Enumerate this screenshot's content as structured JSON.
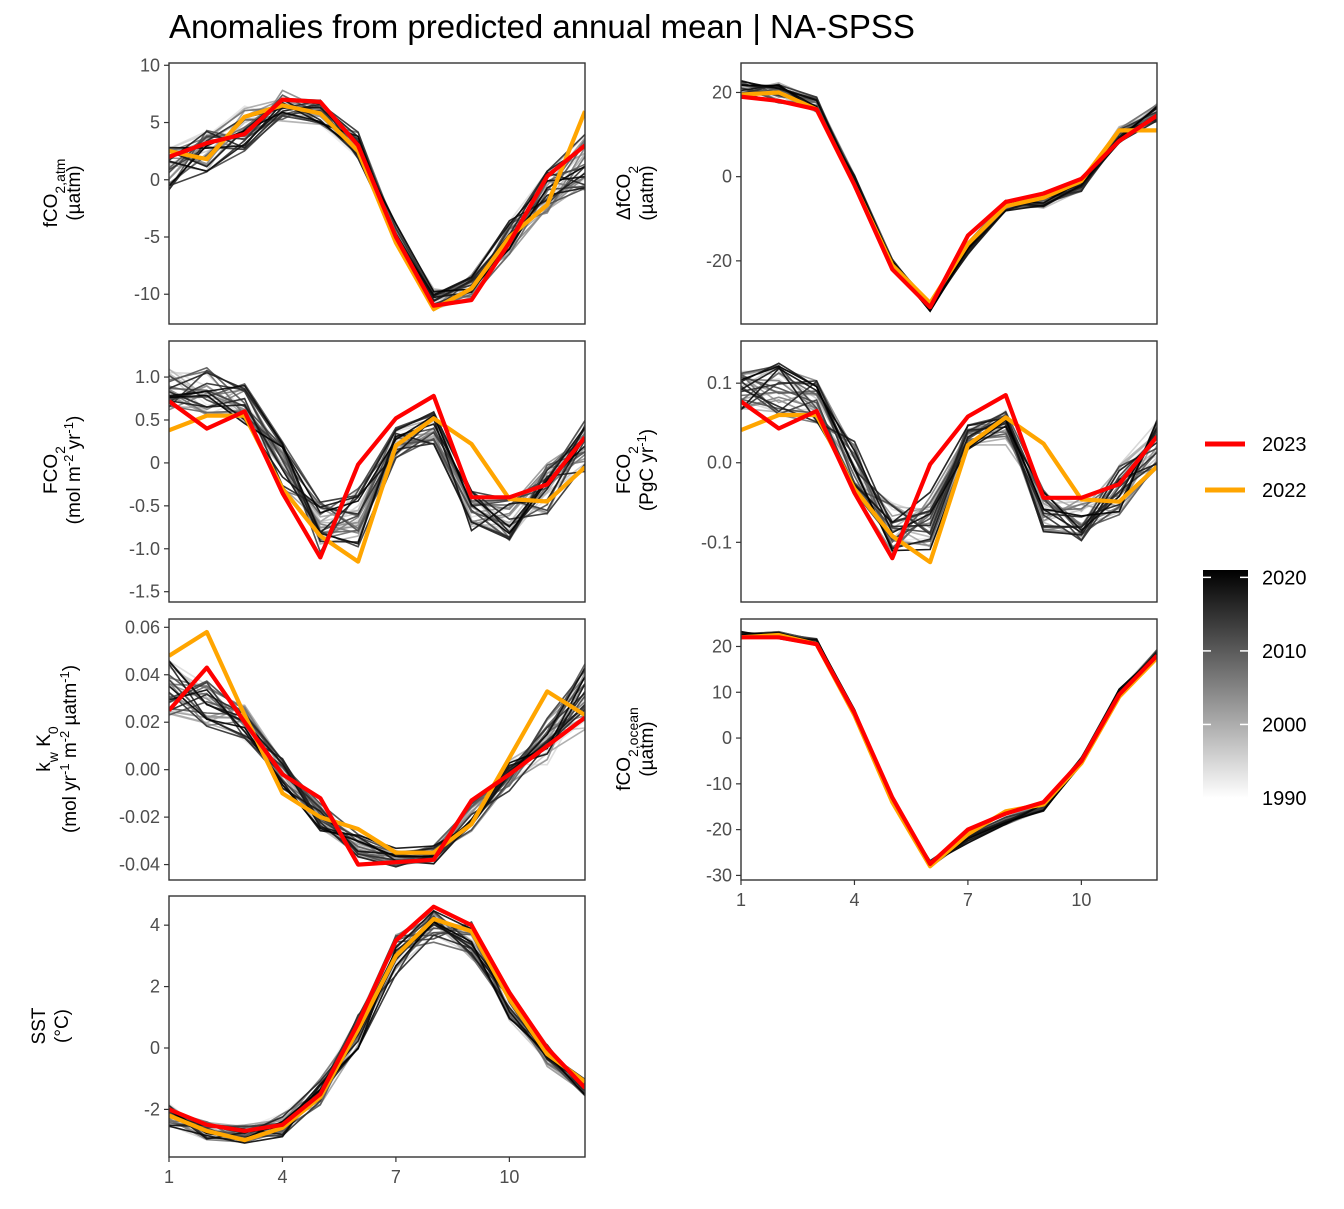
{
  "title": "Anomalies from predicted annual mean | NA-SPSS",
  "x_ticks": [
    1,
    4,
    7,
    10
  ],
  "legend": {
    "lines": [
      {
        "label": "2023",
        "color": "#FF0000"
      },
      {
        "label": "2022",
        "color": "#FFA500"
      }
    ],
    "colorbar_ticks": [
      "2020",
      "2010",
      "2000",
      "1990"
    ],
    "colorbar_range": [
      1990,
      2021
    ]
  },
  "chart_data": [
    {
      "type": "line",
      "ylabel": "fCO2,atm (µatm)",
      "ylim": [
        -12.6,
        10.2
      ],
      "y_ticks": [
        10,
        5,
        0,
        -5,
        -10
      ],
      "x": [
        1,
        2,
        3,
        4,
        5,
        6,
        7,
        8,
        9,
        10,
        11,
        12
      ],
      "series": [
        {
          "name": "2023",
          "values": [
            2.0,
            3.2,
            4.0,
            7.0,
            6.8,
            3.0,
            -5.0,
            -11.0,
            -10.5,
            -5.5,
            0.3,
            3.0
          ]
        },
        {
          "name": "2022",
          "values": [
            2.5,
            1.8,
            5.5,
            6.5,
            5.8,
            2.5,
            -5.5,
            -11.3,
            -9.5,
            -5.0,
            -2.2,
            6.0
          ]
        }
      ],
      "band_mean": [
        1.0,
        2.5,
        4.5,
        6.5,
        6.0,
        3.0,
        -4.8,
        -10.5,
        -9.5,
        -5.0,
        -1.0,
        1.5
      ],
      "band_spread": [
        2.0,
        2.0,
        2.0,
        1.5,
        1.2,
        1.2,
        1.0,
        1.0,
        1.2,
        1.5,
        2.0,
        2.5
      ]
    },
    {
      "type": "line",
      "ylabel": "ΔfCO2 (µatm)",
      "ylim": [
        -35,
        27
      ],
      "y_ticks": [
        20,
        0,
        -20
      ],
      "x": [
        1,
        2,
        3,
        4,
        5,
        6,
        7,
        8,
        9,
        10,
        11,
        12
      ],
      "series": [
        {
          "name": "2023",
          "values": [
            19.0,
            18.0,
            16.0,
            -2.0,
            -22.0,
            -31.0,
            -14.0,
            -6.0,
            -4.0,
            -0.5,
            8.5,
            14.5
          ]
        },
        {
          "name": "2022",
          "values": [
            19.5,
            20.0,
            16.0,
            -2.0,
            -21.0,
            -30.0,
            -16.0,
            -7.0,
            -5.0,
            -1.0,
            11.0,
            11.0
          ]
        }
      ],
      "band_mean": [
        21.0,
        20.0,
        17.0,
        -1.0,
        -21.0,
        -31.0,
        -17.0,
        -7.0,
        -6.0,
        -2.0,
        10.0,
        15.0
      ],
      "band_spread": [
        2.0,
        2.5,
        2.0,
        1.5,
        1.5,
        1.0,
        1.5,
        1.5,
        1.5,
        1.5,
        2.0,
        2.5
      ]
    },
    {
      "type": "line",
      "ylabel": "FCO2 (mol m-2 yr-1)",
      "ylim": [
        -1.62,
        1.42
      ],
      "y_ticks": [
        1.0,
        0.5,
        0.0,
        -0.5,
        -1.0,
        -1.5
      ],
      "x": [
        1,
        2,
        3,
        4,
        5,
        6,
        7,
        8,
        9,
        10,
        11,
        12
      ],
      "series": [
        {
          "name": "2023",
          "values": [
            0.72,
            0.4,
            0.6,
            -0.35,
            -1.1,
            -0.02,
            0.52,
            0.78,
            -0.4,
            -0.4,
            -0.25,
            0.3
          ]
        },
        {
          "name": "2022",
          "values": [
            0.38,
            0.55,
            0.55,
            -0.3,
            -0.85,
            -1.15,
            0.2,
            0.52,
            0.22,
            -0.42,
            -0.45,
            -0.05
          ]
        }
      ],
      "band_mean": [
        0.85,
        0.85,
        0.7,
        -0.05,
        -0.75,
        -0.65,
        0.25,
        0.4,
        -0.55,
        -0.65,
        -0.3,
        0.2
      ],
      "band_spread": [
        0.25,
        0.3,
        0.25,
        0.3,
        0.3,
        0.35,
        0.2,
        0.2,
        0.25,
        0.25,
        0.3,
        0.3
      ]
    },
    {
      "type": "line",
      "ylabel": "FCO2 (PgC yr-1)",
      "ylim": [
        -0.175,
        0.153
      ],
      "y_ticks": [
        0.1,
        0.0,
        -0.1
      ],
      "x": [
        1,
        2,
        3,
        4,
        5,
        6,
        7,
        8,
        9,
        10,
        11,
        12
      ],
      "series": [
        {
          "name": "2023",
          "values": [
            0.077,
            0.043,
            0.065,
            -0.038,
            -0.12,
            -0.002,
            0.058,
            0.085,
            -0.044,
            -0.044,
            -0.027,
            0.033
          ]
        },
        {
          "name": "2022",
          "values": [
            0.041,
            0.06,
            0.06,
            -0.033,
            -0.092,
            -0.125,
            0.022,
            0.057,
            0.024,
            -0.046,
            -0.049,
            -0.005
          ]
        }
      ],
      "band_mean": [
        0.092,
        0.092,
        0.076,
        -0.005,
        -0.082,
        -0.071,
        0.027,
        0.044,
        -0.06,
        -0.071,
        -0.033,
        0.022
      ],
      "band_spread": [
        0.027,
        0.033,
        0.027,
        0.033,
        0.033,
        0.038,
        0.022,
        0.022,
        0.027,
        0.027,
        0.033,
        0.033
      ]
    },
    {
      "type": "line",
      "ylabel": "kw K0 (mol yr-1 m-2 µatm-1)",
      "ylim": [
        -0.0465,
        0.0635
      ],
      "y_ticks": [
        0.06,
        0.04,
        0.02,
        0.0,
        -0.02,
        -0.04
      ],
      "y_tick_labels": [
        "0.06",
        "0.04",
        "0.02",
        "0.00",
        "-0.02",
        "-0.04"
      ],
      "x": [
        1,
        2,
        3,
        4,
        5,
        6,
        7,
        8,
        9,
        10,
        11,
        12
      ],
      "series": [
        {
          "name": "2023",
          "values": [
            0.025,
            0.043,
            0.02,
            -0.002,
            -0.012,
            -0.04,
            -0.039,
            -0.038,
            -0.013,
            -0.002,
            0.01,
            0.022
          ]
        },
        {
          "name": "2022",
          "values": [
            0.048,
            0.058,
            0.023,
            -0.01,
            -0.02,
            -0.025,
            -0.035,
            -0.035,
            -0.023,
            0.005,
            0.033,
            0.023
          ]
        }
      ],
      "band_mean": [
        0.035,
        0.028,
        0.02,
        -0.002,
        -0.02,
        -0.032,
        -0.037,
        -0.036,
        -0.02,
        -0.003,
        0.012,
        0.03
      ],
      "band_spread": [
        0.012,
        0.01,
        0.008,
        0.007,
        0.006,
        0.005,
        0.004,
        0.004,
        0.006,
        0.007,
        0.01,
        0.015
      ]
    },
    {
      "type": "line",
      "ylabel": "fCO2,ocean (µatm)",
      "ylim": [
        -31,
        26
      ],
      "y_ticks": [
        20,
        10,
        0,
        -10,
        -20,
        -30
      ],
      "x": [
        1,
        2,
        3,
        4,
        5,
        6,
        7,
        8,
        9,
        10,
        11,
        12
      ],
      "series": [
        {
          "name": "2023",
          "values": [
            22.0,
            22.0,
            20.5,
            5.5,
            -13.0,
            -27.5,
            -20.0,
            -16.5,
            -14.0,
            -5.0,
            9.5,
            18.0
          ]
        },
        {
          "name": "2022",
          "values": [
            22.0,
            22.5,
            20.5,
            5.0,
            -14.0,
            -28.0,
            -21.0,
            -16.0,
            -14.5,
            -5.5,
            9.0,
            17.5
          ]
        }
      ],
      "band_mean": [
        22.5,
        22.5,
        21.0,
        5.5,
        -13.5,
        -27.5,
        -22.0,
        -18.0,
        -15.0,
        -5.0,
        10.0,
        18.5
      ],
      "band_spread": [
        0.8,
        0.8,
        0.8,
        0.8,
        0.8,
        0.8,
        1.0,
        1.0,
        1.0,
        0.8,
        0.8,
        0.8
      ]
    },
    {
      "type": "line",
      "ylabel": "SST (°C)",
      "ylim": [
        -3.55,
        4.95
      ],
      "y_ticks": [
        4,
        2,
        0,
        -2
      ],
      "x": [
        1,
        2,
        3,
        4,
        5,
        6,
        7,
        8,
        9,
        10,
        11,
        12
      ],
      "series": [
        {
          "name": "2023",
          "values": [
            -2.0,
            -2.5,
            -2.7,
            -2.5,
            -1.5,
            0.8,
            3.5,
            4.6,
            4.0,
            1.8,
            0.0,
            -1.3
          ]
        },
        {
          "name": "2022",
          "values": [
            -2.2,
            -2.7,
            -3.0,
            -2.6,
            -1.6,
            0.6,
            3.0,
            4.2,
            3.8,
            1.6,
            -0.2,
            -1.1
          ]
        }
      ],
      "band_mean": [
        -2.2,
        -2.7,
        -2.8,
        -2.5,
        -1.4,
        0.5,
        3.0,
        4.0,
        3.5,
        1.4,
        -0.2,
        -1.3
      ],
      "band_spread": [
        0.4,
        0.3,
        0.3,
        0.4,
        0.5,
        0.6,
        0.7,
        0.6,
        0.6,
        0.5,
        0.4,
        0.3
      ]
    }
  ]
}
